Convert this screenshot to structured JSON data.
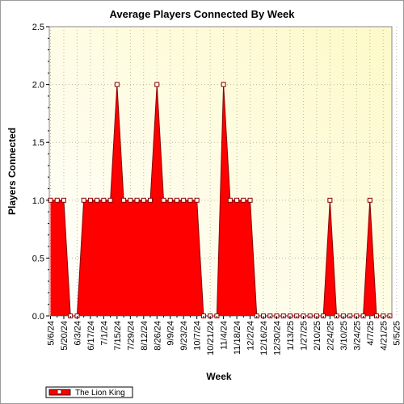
{
  "chart_data": {
    "type": "area",
    "title": "Average Players Connected By Week",
    "xlabel": "Week",
    "ylabel": "Players Connected",
    "ylim": [
      0,
      2.5
    ],
    "yticks": [
      "0.0",
      "0.5",
      "1.0",
      "1.5",
      "2.0",
      "2.5"
    ],
    "grid": true,
    "legend_position": "bottom-left",
    "x_tick_labels": [
      "5/6/24",
      "5/20/24",
      "6/3/24",
      "6/17/24",
      "7/1/24",
      "7/15/24",
      "7/29/24",
      "8/12/24",
      "8/26/24",
      "9/9/24",
      "9/23/24",
      "10/7/24",
      "10/21/24",
      "11/4/24",
      "11/18/24",
      "12/2/24",
      "12/16/24",
      "12/30/24",
      "1/13/25",
      "1/27/25",
      "2/10/25",
      "2/24/25",
      "3/10/25",
      "3/24/25",
      "4/7/25",
      "4/21/25",
      "5/5/25"
    ],
    "series": [
      {
        "name": "The Lion King",
        "color": "#ff0000",
        "values": [
          1,
          1,
          1,
          0,
          0,
          1,
          1,
          1,
          1,
          1,
          2,
          1,
          1,
          1,
          1,
          1,
          2,
          1,
          1,
          1,
          1,
          1,
          1,
          0,
          0,
          0,
          2,
          1,
          1,
          1,
          1,
          0,
          0,
          0,
          0,
          0,
          0,
          0,
          0,
          0,
          0,
          0,
          1,
          0,
          0,
          0,
          0,
          0,
          1,
          0,
          0,
          0
        ]
      }
    ]
  }
}
